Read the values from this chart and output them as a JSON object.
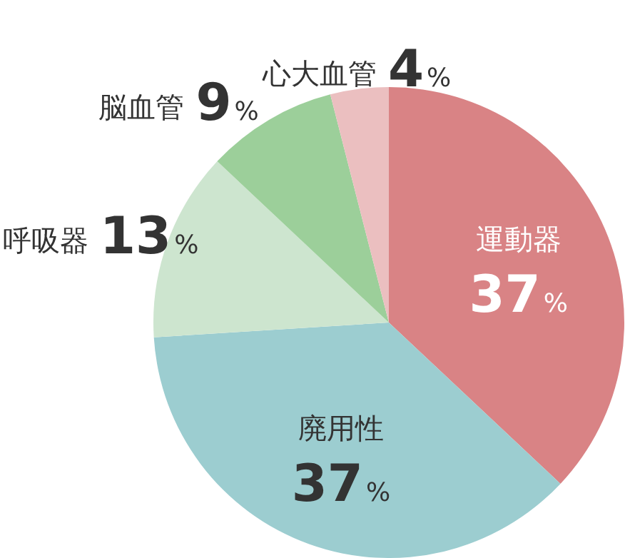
{
  "chart_data": {
    "type": "pie",
    "categories": [
      "運動器",
      "廃用性",
      "呼吸器",
      "脳血管",
      "心大血管"
    ],
    "values": [
      37,
      37,
      13,
      9,
      4
    ],
    "colors": [
      "#d98385",
      "#9ccdd0",
      "#cde5cf",
      "#9ccf9a",
      "#ebbfc0"
    ],
    "value_labels": [
      "37%",
      "37%",
      "13%",
      "9%",
      "4%"
    ],
    "legend": false
  }
}
